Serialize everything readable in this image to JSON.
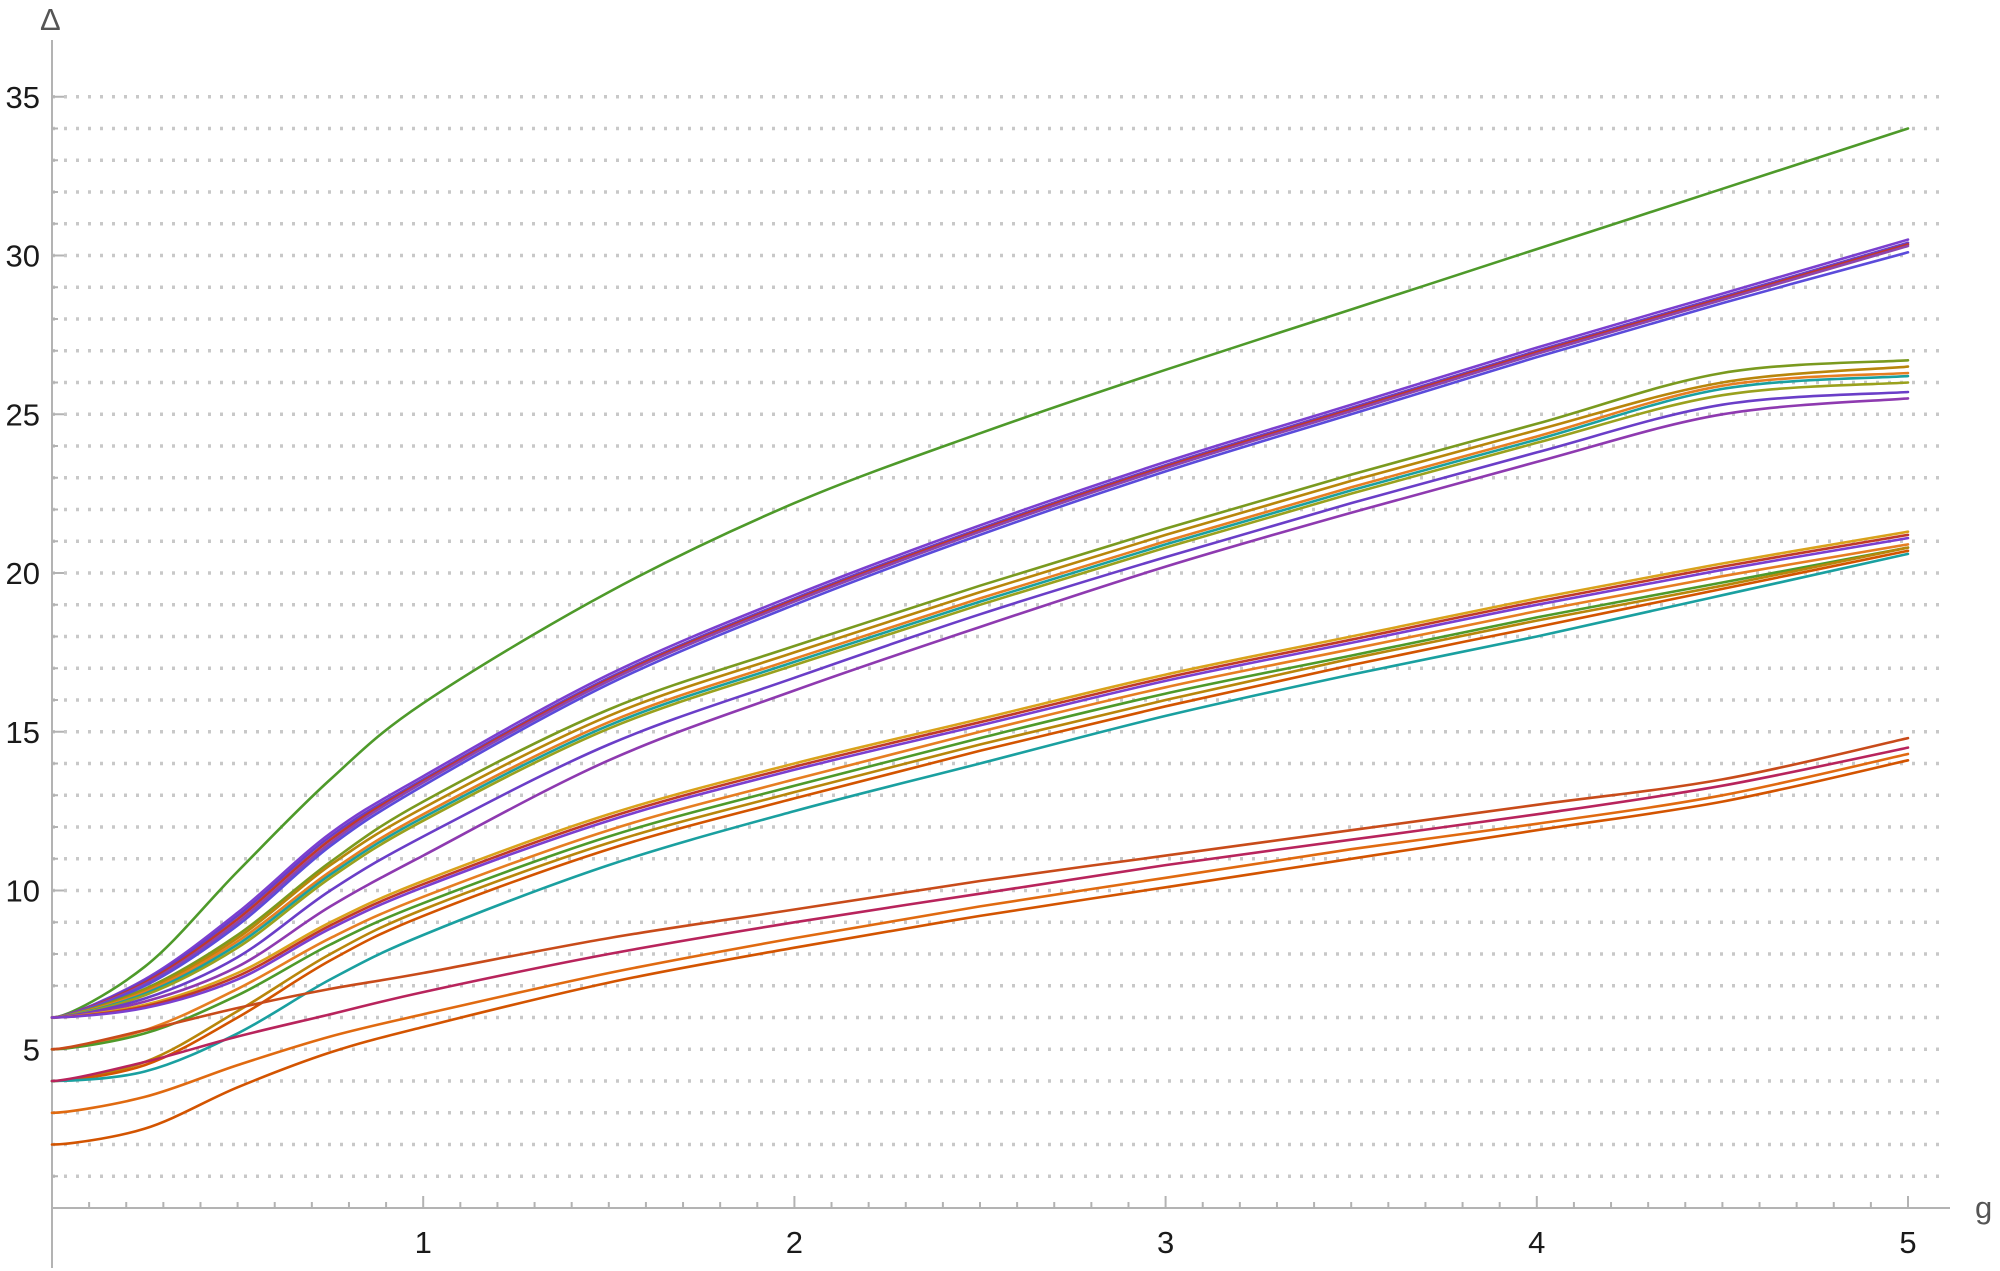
{
  "chart_data": {
    "type": "line",
    "title": "",
    "xlabel": "g",
    "ylabel": "Δ",
    "xlim": [
      0,
      5
    ],
    "ylim": [
      0,
      35
    ],
    "grid": "horizontal dotted lines at every integer Δ",
    "legend": "none",
    "x_ticks": [
      {
        "value": 1,
        "label": "1"
      },
      {
        "value": 2,
        "label": "2"
      },
      {
        "value": 3,
        "label": "3"
      },
      {
        "value": 4,
        "label": "4"
      },
      {
        "value": 5,
        "label": "5"
      }
    ],
    "y_ticks": [
      {
        "value": 5,
        "label": "5"
      },
      {
        "value": 10,
        "label": "10"
      },
      {
        "value": 15,
        "label": "15"
      },
      {
        "value": 20,
        "label": "20"
      },
      {
        "value": 25,
        "label": "25"
      },
      {
        "value": 30,
        "label": "30"
      },
      {
        "value": 35,
        "label": "35"
      }
    ],
    "x": [
      0,
      0.25,
      0.5,
      0.75,
      1,
      1.5,
      2,
      2.5,
      3,
      3.5,
      4,
      4.5,
      5
    ],
    "series": [
      {
        "color": "#4e9a2a",
        "values": [
          6,
          7.6,
          10.6,
          13.5,
          15.9,
          19.4,
          22.2,
          24.4,
          26.4,
          28.3,
          30.2,
          32.1,
          34.0
        ]
      },
      {
        "color": "#7b3fd0",
        "values": [
          6,
          7.2,
          9.3,
          11.8,
          13.6,
          16.8,
          19.3,
          21.5,
          23.5,
          25.3,
          27.1,
          28.8,
          30.5
        ]
      },
      {
        "color": "#6a3ec8",
        "values": [
          6,
          7.15,
          9.2,
          11.7,
          13.5,
          16.7,
          19.2,
          21.4,
          23.4,
          25.2,
          27.0,
          28.7,
          30.4
        ]
      },
      {
        "color": "#c0392b",
        "values": [
          6,
          7.1,
          9.1,
          11.6,
          13.45,
          16.65,
          19.15,
          21.35,
          23.35,
          25.15,
          26.95,
          28.65,
          30.35
        ]
      },
      {
        "color": "#8e44ad",
        "values": [
          6,
          7.05,
          9.0,
          11.5,
          13.4,
          16.6,
          19.1,
          21.3,
          23.3,
          25.1,
          26.9,
          28.6,
          30.3
        ]
      },
      {
        "color": "#5b4bdb",
        "values": [
          6,
          7.0,
          8.9,
          11.4,
          13.3,
          16.5,
          19.0,
          21.2,
          23.2,
          25.0,
          26.8,
          28.5,
          30.1
        ]
      },
      {
        "color": "#7a9a1f",
        "values": [
          6,
          6.9,
          8.6,
          10.9,
          12.8,
          15.7,
          17.7,
          19.6,
          21.4,
          23.1,
          24.7,
          26.3,
          26.7
        ]
      },
      {
        "color": "#b8860b",
        "values": [
          6,
          6.85,
          8.5,
          10.8,
          12.6,
          15.5,
          17.5,
          19.4,
          21.2,
          22.9,
          24.5,
          26.0,
          26.5
        ]
      },
      {
        "color": "#e67e22",
        "values": [
          6,
          6.8,
          8.4,
          10.6,
          12.4,
          15.3,
          17.3,
          19.2,
          21.0,
          22.7,
          24.3,
          25.9,
          26.3
        ]
      },
      {
        "color": "#1aa0a0",
        "values": [
          6,
          6.75,
          8.3,
          10.5,
          12.3,
          15.2,
          17.2,
          19.1,
          20.9,
          22.6,
          24.2,
          25.8,
          26.2
        ]
      },
      {
        "color": "#9aa11d",
        "values": [
          6,
          6.7,
          8.2,
          10.4,
          12.2,
          15.1,
          17.1,
          19.0,
          20.8,
          22.5,
          24.1,
          25.6,
          26.0
        ]
      },
      {
        "color": "#6a3ec8",
        "values": [
          6,
          6.6,
          7.9,
          10.0,
          11.7,
          14.6,
          16.7,
          18.7,
          20.5,
          22.2,
          23.8,
          25.3,
          25.7
        ]
      },
      {
        "color": "#8e3ab0",
        "values": [
          6,
          6.5,
          7.6,
          9.5,
          11.1,
          14.1,
          16.3,
          18.3,
          20.2,
          21.9,
          23.5,
          25.0,
          25.5
        ]
      },
      {
        "color": "#d9a21b",
        "values": [
          6,
          6.4,
          7.4,
          9.0,
          10.3,
          12.4,
          14.0,
          15.4,
          16.8,
          18.0,
          19.2,
          20.3,
          21.3
        ]
      },
      {
        "color": "#c0392b",
        "values": [
          6,
          6.35,
          7.3,
          8.9,
          10.2,
          12.3,
          13.9,
          15.3,
          16.7,
          17.9,
          19.1,
          20.2,
          21.2
        ]
      },
      {
        "color": "#7b3fd0",
        "values": [
          6,
          6.3,
          7.2,
          8.8,
          10.1,
          12.2,
          13.8,
          15.2,
          16.6,
          17.8,
          19.0,
          20.1,
          21.1
        ]
      },
      {
        "color": "#e67e22",
        "values": [
          5,
          5.6,
          6.9,
          8.5,
          9.8,
          11.9,
          13.5,
          15.0,
          16.4,
          17.6,
          18.8,
          19.9,
          20.9
        ]
      },
      {
        "color": "#4e9a2a",
        "values": [
          5,
          5.5,
          6.7,
          8.3,
          9.6,
          11.7,
          13.3,
          14.8,
          16.2,
          17.4,
          18.6,
          19.7,
          20.8
        ]
      },
      {
        "color": "#b8860b",
        "values": [
          4,
          4.6,
          6.2,
          8.0,
          9.4,
          11.5,
          13.1,
          14.6,
          16.0,
          17.3,
          18.5,
          19.6,
          20.8
        ]
      },
      {
        "color": "#d35400",
        "values": [
          4,
          4.5,
          6.0,
          7.8,
          9.2,
          11.3,
          12.9,
          14.4,
          15.8,
          17.1,
          18.3,
          19.5,
          20.7
        ]
      },
      {
        "color": "#1aa0a0",
        "values": [
          4,
          4.3,
          5.5,
          7.2,
          8.6,
          10.8,
          12.5,
          14.0,
          15.5,
          16.8,
          18.0,
          19.3,
          20.6
        ]
      },
      {
        "color": "#c84b1a",
        "values": [
          5,
          5.6,
          6.3,
          6.9,
          7.4,
          8.5,
          9.4,
          10.3,
          11.1,
          11.9,
          12.7,
          13.5,
          14.8
        ]
      },
      {
        "color": "#b8245c",
        "values": [
          4,
          4.6,
          5.4,
          6.1,
          6.8,
          8.0,
          9.0,
          9.9,
          10.8,
          11.6,
          12.4,
          13.3,
          14.5
        ]
      },
      {
        "color": "#e06a10",
        "values": [
          3,
          3.5,
          4.5,
          5.4,
          6.1,
          7.4,
          8.5,
          9.5,
          10.4,
          11.3,
          12.1,
          13.0,
          14.3
        ]
      },
      {
        "color": "#d35400",
        "values": [
          2,
          2.5,
          3.8,
          4.9,
          5.7,
          7.1,
          8.2,
          9.2,
          10.1,
          11.0,
          11.9,
          12.8,
          14.1
        ]
      }
    ]
  }
}
